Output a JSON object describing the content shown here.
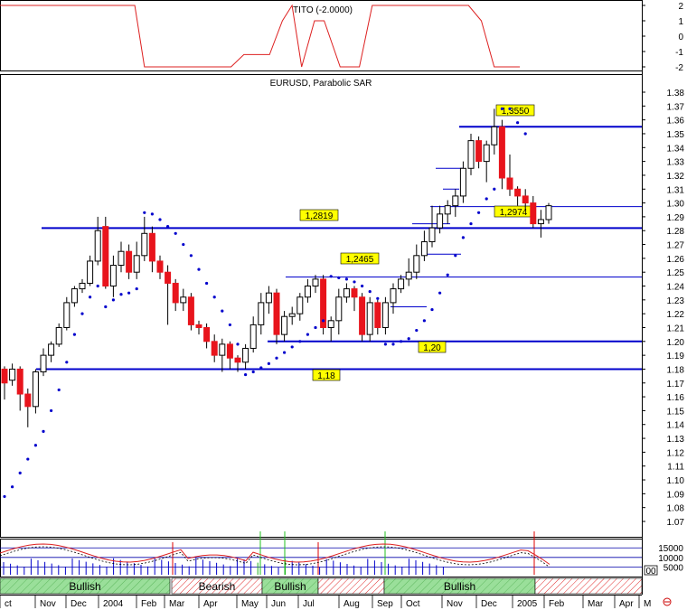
{
  "tito_panel": {
    "title": "TITO (-2.0000)",
    "axis_ticks": [
      "2",
      "1",
      "0",
      "-1",
      "-2"
    ]
  },
  "price_panel": {
    "title": "EURUSD, Parabolic SAR",
    "axis_ticks": [
      "1.38",
      "1.37",
      "1.36",
      "1.35",
      "1.34",
      "1.33",
      "1.32",
      "1.31",
      "1.30",
      "1.29",
      "1.28",
      "1.27",
      "1.26",
      "1.25",
      "1.24",
      "1.23",
      "1.22",
      "1.21",
      "1.20",
      "1.19",
      "1.18",
      "1.17",
      "1.16",
      "1.15",
      "1.14",
      "1.13",
      "1.12",
      "1.11",
      "1.10",
      "1.09",
      "1.08",
      "1.07"
    ]
  },
  "volume_panel": {
    "axis_ticks": [
      "15000",
      "10000",
      "5000"
    ],
    "extra_label": "00"
  },
  "time_axis": {
    "labels": [
      "ct",
      "Nov",
      "Dec",
      "2004",
      "Feb",
      "Mar",
      "Apr",
      "May",
      "Jun",
      "Jul",
      "Aug",
      "Sep",
      "Oct",
      "Nov",
      "Dec",
      "2005",
      "Feb",
      "Mar",
      "Apr",
      "M"
    ]
  },
  "trend_bands": [
    {
      "label": "Bullish",
      "state": "bull"
    },
    {
      "label": "Bearish",
      "state": "bear"
    },
    {
      "label": "Bullish",
      "state": "bull"
    },
    {
      "label": "",
      "state": "bear"
    },
    {
      "label": "Bullish",
      "state": "bull"
    },
    {
      "label": "",
      "state": "bear"
    }
  ],
  "colors": {
    "up_candle": "#ffffff",
    "down_candle": "#e8141c",
    "sar_dots": "#0000cc",
    "level_lines": "#0000cc",
    "tito_line": "#dd2020",
    "label_fill": "#ffff00",
    "bull_band": "#9adf9a",
    "bear_band": "#e23030"
  },
  "chart_data": [
    {
      "type": "line",
      "name": "TITO",
      "ylim": [
        -2,
        2
      ],
      "points": [
        [
          0,
          2
        ],
        [
          0.21,
          2
        ],
        [
          0.225,
          -2
        ],
        [
          0.36,
          -2
        ],
        [
          0.38,
          -1.2
        ],
        [
          0.42,
          -1.2
        ],
        [
          0.44,
          1
        ],
        [
          0.455,
          2
        ],
        [
          0.47,
          -2
        ],
        [
          0.49,
          1
        ],
        [
          0.505,
          1
        ],
        [
          0.53,
          -2
        ],
        [
          0.56,
          -2
        ],
        [
          0.58,
          2
        ],
        [
          0.73,
          2
        ],
        [
          0.75,
          1
        ],
        [
          0.77,
          -2
        ],
        [
          0.81,
          -2
        ]
      ]
    },
    {
      "type": "candlestick",
      "title": "EURUSD, Parabolic SAR",
      "ylim": [
        1.065,
        1.385
      ],
      "levels": [
        {
          "value": 1.355,
          "label": "1,3550"
        },
        {
          "value": 1.2819,
          "label": "1,2819"
        },
        {
          "value": 1.2974,
          "label": "1,2974"
        },
        {
          "value": 1.2465,
          "label": "1,2465"
        },
        {
          "value": 1.2,
          "label": "1,20"
        },
        {
          "value": 1.18,
          "label": "1,18"
        }
      ],
      "candles": [
        [
          1.18,
          1.17,
          1.182,
          1.158
        ],
        [
          1.172,
          1.18,
          1.184,
          1.168
        ],
        [
          1.18,
          1.162,
          1.182,
          1.15
        ],
        [
          1.162,
          1.153,
          1.166,
          1.138
        ],
        [
          1.153,
          1.178,
          1.18,
          1.148
        ],
        [
          1.178,
          1.19,
          1.195,
          1.175
        ],
        [
          1.19,
          1.198,
          1.2,
          1.185
        ],
        [
          1.198,
          1.21,
          1.213,
          1.196
        ],
        [
          1.21,
          1.228,
          1.232,
          1.208
        ],
        [
          1.228,
          1.238,
          1.24,
          1.225
        ],
        [
          1.238,
          1.242,
          1.245,
          1.235
        ],
        [
          1.242,
          1.258,
          1.262,
          1.24
        ],
        [
          1.258,
          1.28,
          1.29,
          1.255
        ],
        [
          1.283,
          1.24,
          1.29,
          1.238
        ],
        [
          1.24,
          1.255,
          1.262,
          1.232
        ],
        [
          1.255,
          1.265,
          1.272,
          1.25
        ],
        [
          1.265,
          1.25,
          1.27,
          1.245
        ],
        [
          1.25,
          1.262,
          1.272,
          1.245
        ],
        [
          1.262,
          1.278,
          1.29,
          1.258
        ],
        [
          1.278,
          1.258,
          1.283,
          1.25
        ],
        [
          1.258,
          1.25,
          1.262,
          1.245
        ],
        [
          1.25,
          1.242,
          1.255,
          1.212
        ],
        [
          1.242,
          1.228,
          1.245,
          1.222
        ],
        [
          1.228,
          1.232,
          1.238,
          1.222
        ],
        [
          1.232,
          1.212,
          1.235,
          1.208
        ],
        [
          1.212,
          1.21,
          1.215,
          1.205
        ],
        [
          1.21,
          1.2,
          1.213,
          1.195
        ],
        [
          1.2,
          1.19,
          1.205,
          1.185
        ],
        [
          1.19,
          1.198,
          1.202,
          1.178
        ],
        [
          1.198,
          1.188,
          1.2,
          1.18
        ],
        [
          1.188,
          1.185,
          1.19,
          1.178
        ],
        [
          1.185,
          1.195,
          1.198,
          1.18
        ],
        [
          1.195,
          1.212,
          1.218,
          1.192
        ],
        [
          1.212,
          1.228,
          1.235,
          1.205
        ],
        [
          1.228,
          1.235,
          1.24,
          1.22
        ],
        [
          1.235,
          1.205,
          1.238,
          1.198
        ],
        [
          1.205,
          1.218,
          1.222,
          1.2
        ],
        [
          1.218,
          1.22,
          1.225,
          1.212
        ],
        [
          1.22,
          1.232,
          1.235,
          1.215
        ],
        [
          1.232,
          1.24,
          1.245,
          1.228
        ],
        [
          1.24,
          1.245,
          1.248,
          1.235
        ],
        [
          1.245,
          1.21,
          1.248,
          1.205
        ],
        [
          1.21,
          1.215,
          1.218,
          1.2
        ],
        [
          1.215,
          1.232,
          1.238,
          1.205
        ],
        [
          1.232,
          1.238,
          1.242,
          1.228
        ],
        [
          1.238,
          1.232,
          1.24,
          1.222
        ],
        [
          1.232,
          1.205,
          1.235,
          1.2
        ],
        [
          1.205,
          1.228,
          1.232,
          1.2
        ],
        [
          1.228,
          1.21,
          1.23,
          1.205
        ],
        [
          1.21,
          1.228,
          1.232,
          1.205
        ],
        [
          1.228,
          1.238,
          1.242,
          1.22
        ],
        [
          1.238,
          1.245,
          1.248,
          1.235
        ],
        [
          1.245,
          1.25,
          1.26,
          1.24
        ],
        [
          1.25,
          1.262,
          1.27,
          1.245
        ],
        [
          1.262,
          1.272,
          1.28,
          1.258
        ],
        [
          1.272,
          1.282,
          1.298,
          1.268
        ],
        [
          1.282,
          1.292,
          1.298,
          1.278
        ],
        [
          1.292,
          1.298,
          1.302,
          1.285
        ],
        [
          1.298,
          1.305,
          1.31,
          1.29
        ],
        [
          1.305,
          1.325,
          1.33,
          1.3
        ],
        [
          1.325,
          1.345,
          1.35,
          1.32
        ],
        [
          1.345,
          1.33,
          1.348,
          1.325
        ],
        [
          1.33,
          1.342,
          1.345,
          1.315
        ],
        [
          1.342,
          1.355,
          1.368,
          1.335
        ],
        [
          1.355,
          1.318,
          1.36,
          1.31
        ],
        [
          1.318,
          1.31,
          1.335,
          1.305
        ],
        [
          1.31,
          1.305,
          1.312,
          1.298
        ],
        [
          1.305,
          1.3,
          1.31,
          1.295
        ],
        [
          1.3,
          1.285,
          1.305,
          1.282
        ],
        [
          1.285,
          1.288,
          1.295,
          1.275
        ],
        [
          1.288,
          1.298,
          1.3,
          1.285
        ]
      ],
      "sar": [
        [
          0,
          1.088
        ],
        [
          1,
          1.095
        ],
        [
          2,
          1.105
        ],
        [
          3,
          1.115
        ],
        [
          4,
          1.125
        ],
        [
          5,
          1.135
        ],
        [
          6,
          1.15
        ],
        [
          7,
          1.165
        ],
        [
          8,
          1.185
        ],
        [
          9,
          1.205
        ],
        [
          10,
          1.22
        ],
        [
          11,
          1.232
        ],
        [
          12,
          1.24
        ],
        [
          13,
          1.225
        ],
        [
          14,
          1.23
        ],
        [
          15,
          1.234
        ],
        [
          16,
          1.235
        ],
        [
          17,
          1.238
        ],
        [
          18,
          1.293
        ],
        [
          19,
          1.292
        ],
        [
          20,
          1.288
        ],
        [
          21,
          1.283
        ],
        [
          22,
          1.278
        ],
        [
          23,
          1.27
        ],
        [
          24,
          1.262
        ],
        [
          25,
          1.252
        ],
        [
          26,
          1.242
        ],
        [
          27,
          1.232
        ],
        [
          28,
          1.222
        ],
        [
          29,
          1.212
        ],
        [
          30,
          1.198
        ],
        [
          31,
          1.176
        ],
        [
          32,
          1.178
        ],
        [
          33,
          1.181
        ],
        [
          34,
          1.184
        ],
        [
          35,
          1.188
        ],
        [
          36,
          1.192
        ],
        [
          37,
          1.196
        ],
        [
          38,
          1.2
        ],
        [
          39,
          1.205
        ],
        [
          40,
          1.21
        ],
        [
          41,
          1.215
        ],
        [
          42,
          1.247
        ],
        [
          43,
          1.246
        ],
        [
          44,
          1.245
        ],
        [
          45,
          1.243
        ],
        [
          46,
          1.24
        ],
        [
          47,
          1.236
        ],
        [
          48,
          1.231
        ],
        [
          49,
          1.198
        ],
        [
          50,
          1.198
        ],
        [
          51,
          1.2
        ],
        [
          52,
          1.202
        ],
        [
          53,
          1.208
        ],
        [
          54,
          1.215
        ],
        [
          55,
          1.223
        ],
        [
          56,
          1.235
        ],
        [
          57,
          1.248
        ],
        [
          58,
          1.262
        ],
        [
          59,
          1.275
        ],
        [
          60,
          1.285
        ],
        [
          61,
          1.293
        ],
        [
          62,
          1.303
        ],
        [
          63,
          1.31
        ],
        [
          64,
          1.368
        ],
        [
          65,
          1.368
        ],
        [
          66,
          1.358
        ],
        [
          67,
          1.35
        ]
      ]
    },
    {
      "type": "bar",
      "name": "Volume",
      "ylim": [
        0,
        17000
      ]
    }
  ]
}
